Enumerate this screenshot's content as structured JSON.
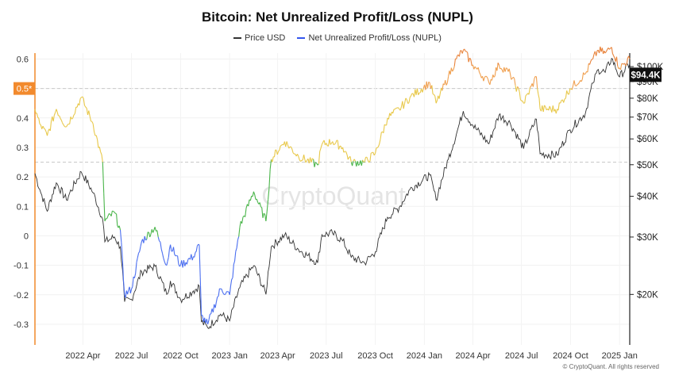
{
  "title": "Bitcoin: Net Unrealized Profit/Loss (NUPL)",
  "legend": [
    {
      "label": "Price USD",
      "color": "#333333"
    },
    {
      "label": "Net Unrealized Profit/Loss (NUPL)",
      "color": "#3355ee"
    }
  ],
  "watermark": "CryptoQuant",
  "credit": "© CryptoQuant. All rights reserved",
  "colors": {
    "capitulation": "#4a6ef0",
    "hope_fear": "#4ab54a",
    "optimism_anxiety": "#e8c84a",
    "belief_denial": "#f0a050",
    "euphoria_greed": "#e8823a",
    "price": "#333333",
    "left_axis": "#f08a2b",
    "marker_bg": "#f28a2d",
    "price_label_bg": "#111111"
  },
  "chart_data": {
    "type": "line",
    "title": "Bitcoin: Net Unrealized Profit/Loss (NUPL)",
    "left_axis": {
      "ylim": [
        -0.37,
        0.62
      ],
      "ticks": [
        0.6,
        0.5,
        0.4,
        0.3,
        0.2,
        0.1,
        0,
        -0.1,
        -0.2,
        -0.3
      ],
      "tick_labels": [
        "0.6",
        "0.5",
        "0.4",
        "0.3",
        "0.2",
        "0.1",
        "0",
        "-0.1",
        "-0.2",
        "-0.3"
      ]
    },
    "right_axis": {
      "scale": "log",
      "ylim": [
        14000,
        110000
      ],
      "ticks": [
        100000,
        90000,
        80000,
        70000,
        60000,
        50000,
        40000,
        30000,
        20000
      ],
      "tick_labels": [
        "$100K",
        "$90K",
        "$80K",
        "$70K",
        "$60K",
        "$50K",
        "$40K",
        "$30K",
        "$20K"
      ]
    },
    "x_axis": {
      "range": [
        "2022-01-01",
        "2025-01-20"
      ],
      "ticks": [
        "2022-04-01",
        "2022-07-01",
        "2022-10-01",
        "2023-01-01",
        "2023-04-01",
        "2023-07-01",
        "2023-10-01",
        "2024-01-01",
        "2024-04-01",
        "2024-07-01",
        "2024-10-01",
        "2025-01-01"
      ],
      "tick_labels": [
        "2022 Apr",
        "2022 Jul",
        "2022 Oct",
        "2023 Jan",
        "2023 Apr",
        "2023 Jul",
        "2023 Oct",
        "2024 Jan",
        "2024 Apr",
        "2024 Jul",
        "2024 Oct",
        "2025 Jan"
      ]
    },
    "reference_lines": [
      0.5,
      0.25
    ],
    "left_marker": {
      "value": 0.5,
      "label": "0.5*"
    },
    "price_marker": {
      "value": 94400,
      "label": "$94.4K"
    },
    "series": [
      {
        "name": "Price USD",
        "axis": "right",
        "x": [
          "2022-01-01",
          "2022-01-10",
          "2022-01-24",
          "2022-02-10",
          "2022-03-01",
          "2022-03-29",
          "2022-04-20",
          "2022-05-08",
          "2022-05-12",
          "2022-05-30",
          "2022-06-10",
          "2022-06-18",
          "2022-07-01",
          "2022-07-20",
          "2022-08-14",
          "2022-09-05",
          "2022-09-12",
          "2022-10-01",
          "2022-10-25",
          "2022-11-05",
          "2022-11-09",
          "2022-11-21",
          "2022-12-15",
          "2023-01-01",
          "2023-01-20",
          "2023-02-15",
          "2023-03-10",
          "2023-03-20",
          "2023-04-14",
          "2023-05-10",
          "2023-06-15",
          "2023-06-23",
          "2023-07-13",
          "2023-08-01",
          "2023-08-17",
          "2023-09-11",
          "2023-10-01",
          "2023-10-24",
          "2023-11-15",
          "2023-12-05",
          "2024-01-11",
          "2024-01-23",
          "2024-02-15",
          "2024-03-01",
          "2024-03-14",
          "2024-04-01",
          "2024-05-01",
          "2024-05-20",
          "2024-06-10",
          "2024-07-05",
          "2024-07-29",
          "2024-08-05",
          "2024-09-06",
          "2024-09-30",
          "2024-10-29",
          "2024-11-12",
          "2024-11-22",
          "2024-12-05",
          "2024-12-17",
          "2025-01-01",
          "2025-01-20"
        ],
        "values": [
          47000,
          42000,
          36000,
          44000,
          39000,
          47500,
          41000,
          34000,
          29000,
          30000,
          28000,
          19000,
          19300,
          23500,
          24400,
          20000,
          22000,
          19300,
          20500,
          21200,
          16500,
          15800,
          17400,
          16600,
          21000,
          24500,
          20000,
          28000,
          30400,
          27500,
          25000,
          30500,
          30800,
          29200,
          26000,
          25000,
          27000,
          34500,
          37000,
          42000,
          46500,
          39000,
          52000,
          62000,
          73000,
          66000,
          58000,
          71000,
          67000,
          56000,
          69000,
          54000,
          53500,
          64000,
          72000,
          89000,
          98000,
          96000,
          106000,
          93000,
          102000
        ]
      },
      {
        "name": "Net Unrealized Profit/Loss (NUPL)",
        "axis": "left",
        "x": [
          "2022-01-01",
          "2022-01-10",
          "2022-01-24",
          "2022-02-10",
          "2022-03-01",
          "2022-03-29",
          "2022-04-20",
          "2022-05-08",
          "2022-05-12",
          "2022-05-30",
          "2022-06-10",
          "2022-06-18",
          "2022-07-01",
          "2022-07-20",
          "2022-08-14",
          "2022-09-05",
          "2022-09-12",
          "2022-10-01",
          "2022-10-25",
          "2022-11-05",
          "2022-11-09",
          "2022-11-21",
          "2022-12-15",
          "2023-01-01",
          "2023-01-20",
          "2023-02-15",
          "2023-03-10",
          "2023-03-20",
          "2023-04-14",
          "2023-05-10",
          "2023-06-15",
          "2023-06-23",
          "2023-07-13",
          "2023-08-01",
          "2023-08-17",
          "2023-09-11",
          "2023-10-01",
          "2023-10-24",
          "2023-11-15",
          "2023-12-05",
          "2024-01-11",
          "2024-01-23",
          "2024-02-15",
          "2024-03-01",
          "2024-03-14",
          "2024-04-01",
          "2024-05-01",
          "2024-05-20",
          "2024-06-10",
          "2024-07-05",
          "2024-07-29",
          "2024-08-05",
          "2024-09-06",
          "2024-09-30",
          "2024-10-29",
          "2024-11-12",
          "2024-11-22",
          "2024-12-05",
          "2024-12-17",
          "2025-01-01",
          "2025-01-20"
        ],
        "values": [
          0.43,
          0.38,
          0.34,
          0.43,
          0.37,
          0.47,
          0.38,
          0.25,
          0.05,
          0.08,
          0.02,
          -0.2,
          -0.18,
          -0.02,
          0.03,
          -0.1,
          -0.03,
          -0.1,
          -0.07,
          -0.03,
          -0.27,
          -0.3,
          -0.18,
          -0.2,
          0.03,
          0.15,
          0.05,
          0.26,
          0.32,
          0.27,
          0.24,
          0.31,
          0.32,
          0.3,
          0.25,
          0.25,
          0.28,
          0.4,
          0.43,
          0.47,
          0.52,
          0.45,
          0.54,
          0.6,
          0.63,
          0.58,
          0.52,
          0.58,
          0.55,
          0.45,
          0.54,
          0.43,
          0.43,
          0.5,
          0.55,
          0.6,
          0.63,
          0.62,
          0.64,
          0.57,
          0.6
        ]
      }
    ],
    "grid": true,
    "legend_position": "top-center"
  }
}
